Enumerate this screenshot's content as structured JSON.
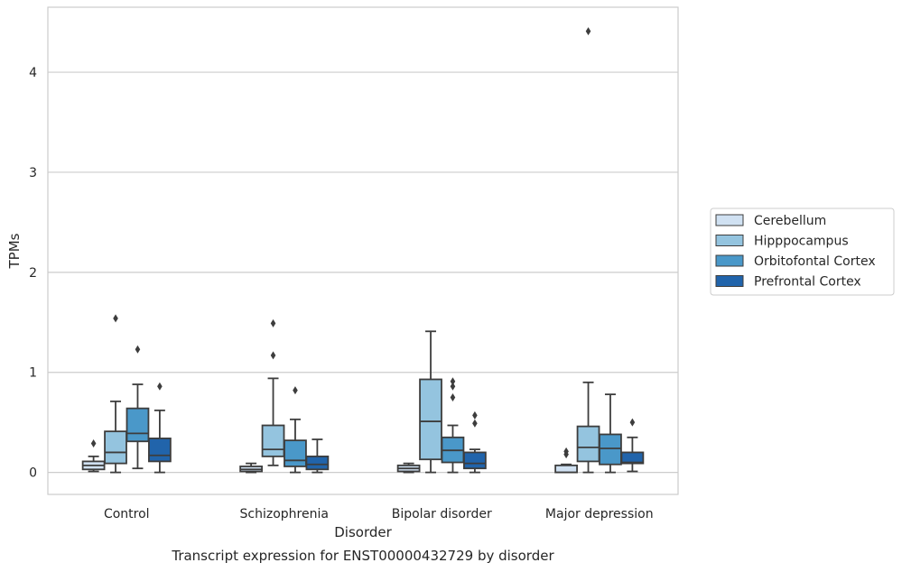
{
  "chart_data": {
    "type": "box",
    "caption": "Transcript expression for ENST00000432729 by disorder",
    "xlabel": "Disorder",
    "ylabel": "TPMs",
    "ylim": [
      -0.22,
      4.65
    ],
    "yticks": [
      0,
      1,
      2,
      3,
      4
    ],
    "grid": "horizontal",
    "legend_position": "right",
    "categories": [
      "Control",
      "Schizophrenia",
      "Bipolar disorder",
      "Major depression"
    ],
    "series": [
      {
        "name": "Cerebellum",
        "color": "#d0e1f2",
        "boxes": [
          {
            "whisker_low": 0.01,
            "q1": 0.03,
            "median": 0.07,
            "q3": 0.11,
            "whisker_high": 0.16,
            "outliers": [
              0.29
            ]
          },
          {
            "whisker_low": 0.0,
            "q1": 0.01,
            "median": 0.03,
            "q3": 0.06,
            "whisker_high": 0.09,
            "outliers": []
          },
          {
            "whisker_low": 0.0,
            "q1": 0.01,
            "median": 0.04,
            "q3": 0.07,
            "whisker_high": 0.09,
            "outliers": []
          },
          {
            "whisker_low": 0.0,
            "q1": 0.0,
            "median": 0.0,
            "q3": 0.07,
            "whisker_high": 0.08,
            "outliers": [
              0.18,
              0.21
            ]
          }
        ]
      },
      {
        "name": "Hipppocampus",
        "color": "#94c4df",
        "boxes": [
          {
            "whisker_low": 0.0,
            "q1": 0.09,
            "median": 0.2,
            "q3": 0.41,
            "whisker_high": 0.71,
            "outliers": [
              1.54
            ]
          },
          {
            "whisker_low": 0.07,
            "q1": 0.16,
            "median": 0.23,
            "q3": 0.47,
            "whisker_high": 0.94,
            "outliers": [
              1.17,
              1.49
            ]
          },
          {
            "whisker_low": 0.0,
            "q1": 0.13,
            "median": 0.51,
            "q3": 0.93,
            "whisker_high": 1.41,
            "outliers": []
          },
          {
            "whisker_low": 0.0,
            "q1": 0.11,
            "median": 0.25,
            "q3": 0.46,
            "whisker_high": 0.9,
            "outliers": [
              4.41
            ]
          }
        ]
      },
      {
        "name": "Orbitofontal Cortex",
        "color": "#4a98c9",
        "boxes": [
          {
            "whisker_low": 0.04,
            "q1": 0.31,
            "median": 0.39,
            "q3": 0.64,
            "whisker_high": 0.88,
            "outliers": [
              1.23
            ]
          },
          {
            "whisker_low": 0.0,
            "q1": 0.06,
            "median": 0.12,
            "q3": 0.32,
            "whisker_high": 0.53,
            "outliers": [
              0.82
            ]
          },
          {
            "whisker_low": 0.0,
            "q1": 0.1,
            "median": 0.22,
            "q3": 0.35,
            "whisker_high": 0.47,
            "outliers": [
              0.75,
              0.86,
              0.91
            ]
          },
          {
            "whisker_low": 0.0,
            "q1": 0.08,
            "median": 0.24,
            "q3": 0.38,
            "whisker_high": 0.78,
            "outliers": []
          }
        ]
      },
      {
        "name": "Prefrontal Cortex",
        "color": "#2164ab",
        "boxes": [
          {
            "whisker_low": 0.0,
            "q1": 0.11,
            "median": 0.17,
            "q3": 0.34,
            "whisker_high": 0.62,
            "outliers": [
              0.86
            ]
          },
          {
            "whisker_low": 0.0,
            "q1": 0.03,
            "median": 0.08,
            "q3": 0.16,
            "whisker_high": 0.33,
            "outliers": []
          },
          {
            "whisker_low": 0.0,
            "q1": 0.04,
            "median": 0.09,
            "q3": 0.2,
            "whisker_high": 0.23,
            "outliers": [
              0.49,
              0.57
            ]
          },
          {
            "whisker_low": 0.01,
            "q1": 0.09,
            "median": 0.1,
            "q3": 0.2,
            "whisker_high": 0.35,
            "outliers": [
              0.5
            ]
          }
        ]
      }
    ]
  }
}
